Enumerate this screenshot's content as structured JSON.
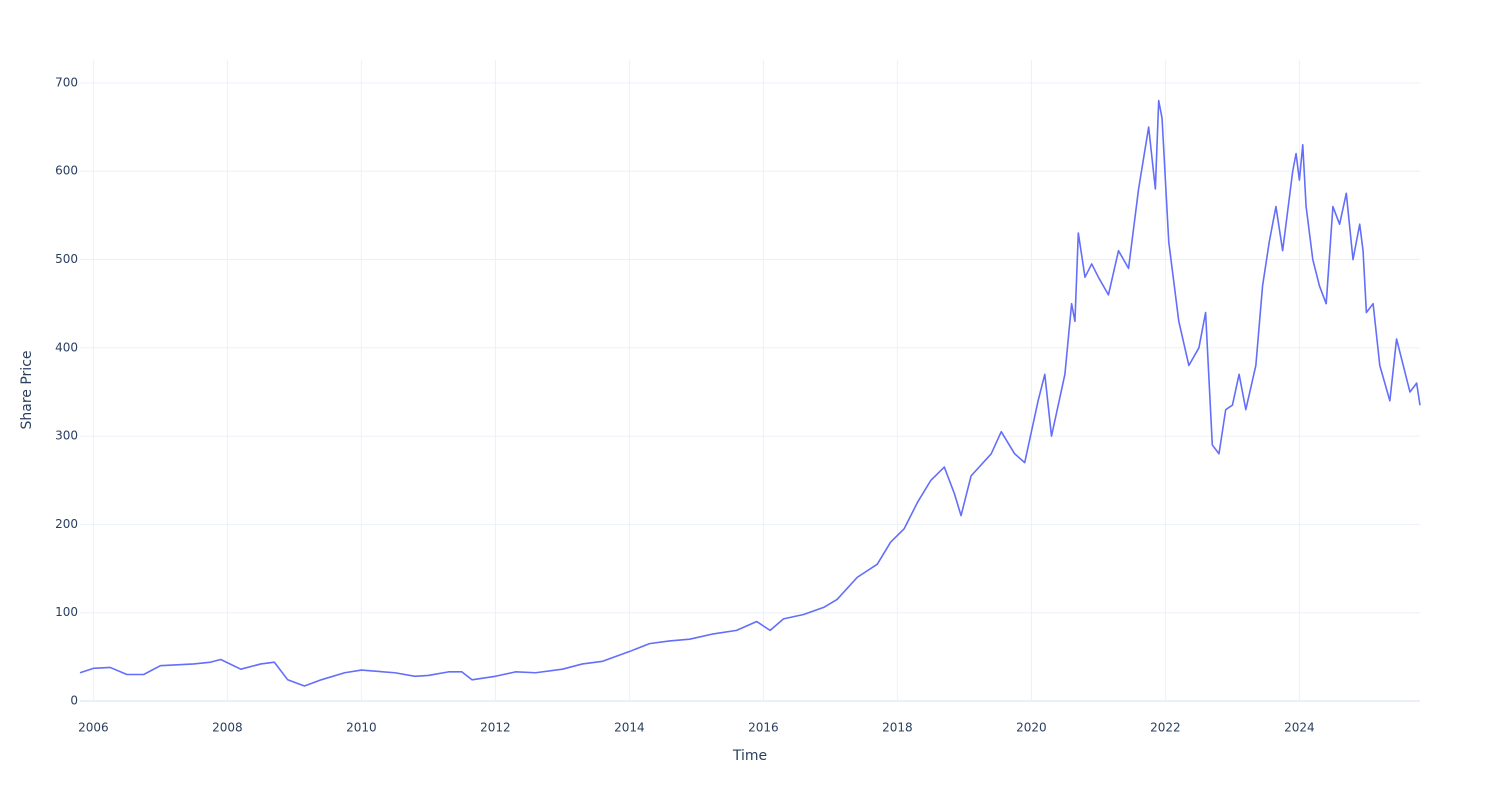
{
  "chart_data": {
    "type": "line",
    "xlabel": "Time",
    "ylabel": "Share Price",
    "x": [
      2005.8,
      2006.0,
      2006.25,
      2006.5,
      2006.75,
      2007.0,
      2007.25,
      2007.5,
      2007.75,
      2007.9,
      2008.2,
      2008.5,
      2008.7,
      2008.9,
      2009.15,
      2009.4,
      2009.75,
      2010.0,
      2010.5,
      2010.8,
      2011.0,
      2011.3,
      2011.5,
      2011.65,
      2012.0,
      2012.3,
      2012.6,
      2013.0,
      2013.3,
      2013.6,
      2014.0,
      2014.3,
      2014.6,
      2014.9,
      2015.25,
      2015.6,
      2015.9,
      2016.1,
      2016.3,
      2016.6,
      2016.9,
      2017.1,
      2017.4,
      2017.7,
      2017.9,
      2018.1,
      2018.3,
      2018.5,
      2018.7,
      2018.85,
      2018.95,
      2019.1,
      2019.4,
      2019.55,
      2019.75,
      2019.9,
      2020.1,
      2020.2,
      2020.3,
      2020.5,
      2020.6,
      2020.65,
      2020.7,
      2020.8,
      2020.9,
      2021.0,
      2021.15,
      2021.3,
      2021.45,
      2021.6,
      2021.75,
      2021.85,
      2021.9,
      2021.95,
      2022.05,
      2022.2,
      2022.35,
      2022.5,
      2022.6,
      2022.7,
      2022.8,
      2022.9,
      2023.0,
      2023.1,
      2023.2,
      2023.35,
      2023.45,
      2023.55,
      2023.65,
      2023.75,
      2023.9,
      2023.95,
      2024.0,
      2024.05,
      2024.1,
      2024.2,
      2024.3,
      2024.4,
      2024.5,
      2024.6,
      2024.7,
      2024.8,
      2024.9,
      2024.95,
      2025.0,
      2025.1,
      2025.2,
      2025.35,
      2025.45,
      2025.55,
      2025.65,
      2025.75,
      2025.8
    ],
    "series": [
      {
        "name": "Share Price",
        "color": "#636efa",
        "values": [
          32,
          37,
          38,
          30,
          30,
          40,
          41,
          42,
          44,
          47,
          36,
          42,
          44,
          24,
          17,
          24,
          32,
          35,
          32,
          28,
          29,
          33,
          33,
          24,
          28,
          33,
          32,
          36,
          42,
          45,
          56,
          65,
          68,
          70,
          76,
          80,
          90,
          80,
          93,
          98,
          106,
          115,
          140,
          155,
          180,
          195,
          225,
          250,
          265,
          235,
          210,
          255,
          280,
          305,
          280,
          270,
          340,
          370,
          300,
          370,
          450,
          430,
          530,
          480,
          495,
          480,
          460,
          510,
          490,
          580,
          650,
          580,
          680,
          660,
          520,
          430,
          380,
          400,
          440,
          290,
          280,
          330,
          335,
          370,
          330,
          380,
          470,
          520,
          560,
          510,
          600,
          620,
          590,
          630,
          560,
          500,
          470,
          450,
          560,
          540,
          575,
          500,
          540,
          510,
          440,
          450,
          380,
          340,
          410,
          380,
          350,
          360,
          335
        ]
      }
    ],
    "xlim": [
      2005.8,
      2025.8
    ],
    "xticks": [
      2006,
      2008,
      2010,
      2012,
      2014,
      2016,
      2018,
      2020,
      2022,
      2024
    ],
    "ylim": [
      0,
      726
    ],
    "yticks": [
      0,
      100,
      200,
      300,
      400,
      500,
      600,
      700
    ],
    "grid": true
  }
}
